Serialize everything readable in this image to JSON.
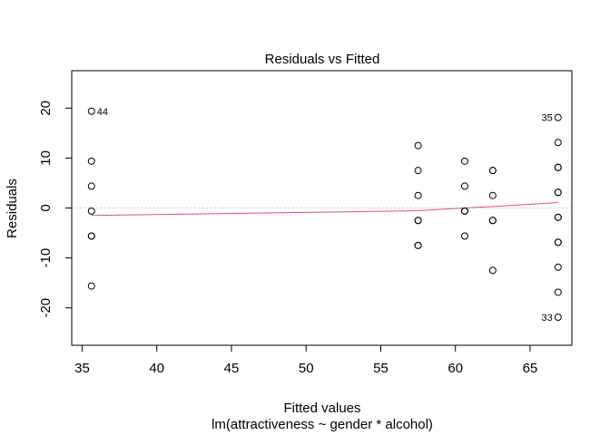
{
  "chart_data": {
    "type": "scatter",
    "title": "Residuals vs Fitted",
    "subtitle": "lm(attractiveness ~ gender * alcohol)",
    "xlabel": "Fitted values",
    "ylabel": "Residuals",
    "xlim": [
      34.3,
      67.8
    ],
    "ylim": [
      -27.5,
      27.5
    ],
    "xticks": [
      35,
      40,
      45,
      50,
      55,
      60,
      65
    ],
    "yticks": [
      -20,
      -10,
      0,
      10,
      20
    ],
    "grid": false,
    "reference_line": {
      "y": 0,
      "style": "dotted",
      "color": "#bbbbbb"
    },
    "smooth_color": "#e05563",
    "point_color": "#000000",
    "points": [
      {
        "x": 35.625,
        "y": 19.375,
        "label": "44"
      },
      {
        "x": 35.625,
        "y": 9.375
      },
      {
        "x": 35.625,
        "y": 4.375
      },
      {
        "x": 35.625,
        "y": -0.625
      },
      {
        "x": 35.625,
        "y": -5.625
      },
      {
        "x": 35.625,
        "y": -5.625
      },
      {
        "x": 35.625,
        "y": -15.625
      },
      {
        "x": 57.5,
        "y": 12.5
      },
      {
        "x": 57.5,
        "y": 7.5
      },
      {
        "x": 57.5,
        "y": 2.5
      },
      {
        "x": 57.5,
        "y": -2.5
      },
      {
        "x": 57.5,
        "y": -2.5
      },
      {
        "x": 57.5,
        "y": -7.5
      },
      {
        "x": 57.5,
        "y": -7.5
      },
      {
        "x": 60.625,
        "y": 9.375
      },
      {
        "x": 60.625,
        "y": 4.375
      },
      {
        "x": 60.625,
        "y": -0.625
      },
      {
        "x": 60.625,
        "y": -0.625
      },
      {
        "x": 60.625,
        "y": -5.625
      },
      {
        "x": 62.5,
        "y": 7.5
      },
      {
        "x": 62.5,
        "y": 7.5
      },
      {
        "x": 62.5,
        "y": 2.5
      },
      {
        "x": 62.5,
        "y": -2.5
      },
      {
        "x": 62.5,
        "y": -2.5
      },
      {
        "x": 62.5,
        "y": -12.5
      },
      {
        "x": 66.875,
        "y": 18.125,
        "label": "35"
      },
      {
        "x": 66.875,
        "y": 13.125
      },
      {
        "x": 66.875,
        "y": 8.125
      },
      {
        "x": 66.875,
        "y": 8.125
      },
      {
        "x": 66.875,
        "y": 3.125
      },
      {
        "x": 66.875,
        "y": 3.125
      },
      {
        "x": 66.875,
        "y": -1.875
      },
      {
        "x": 66.875,
        "y": -1.875
      },
      {
        "x": 66.875,
        "y": -6.875
      },
      {
        "x": 66.875,
        "y": -6.875
      },
      {
        "x": 66.875,
        "y": -11.875
      },
      {
        "x": 66.875,
        "y": -16.875
      },
      {
        "x": 66.875,
        "y": -21.875,
        "label": "33"
      }
    ],
    "smooth_line": [
      {
        "x": 35.625,
        "y": -1.5
      },
      {
        "x": 45.0,
        "y": -1.1
      },
      {
        "x": 57.5,
        "y": -0.55
      },
      {
        "x": 60.625,
        "y": 0.0
      },
      {
        "x": 62.5,
        "y": 0.3
      },
      {
        "x": 66.875,
        "y": 1.1
      }
    ]
  }
}
